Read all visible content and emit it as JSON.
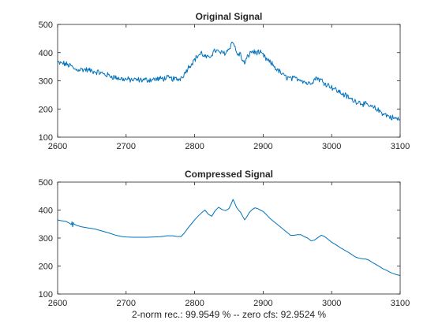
{
  "chart_data": [
    {
      "type": "line",
      "title": "Original Signal",
      "xlabel": "",
      "ylabel": "",
      "xlim": [
        2600,
        3100
      ],
      "ylim": [
        100,
        500
      ],
      "xticks": [
        2600,
        2700,
        2800,
        2900,
        3000,
        3100
      ],
      "yticks": [
        100,
        200,
        300,
        400,
        500
      ],
      "grid": false,
      "color": "#0072BD",
      "noisy": true,
      "series": [
        {
          "x": [
            2600,
            2603,
            2608,
            2613,
            2620,
            2625,
            2630,
            2640,
            2650,
            2660,
            2670,
            2680,
            2690,
            2700,
            2710,
            2720,
            2730,
            2740,
            2750,
            2760,
            2770,
            2778,
            2785,
            2790,
            2795,
            2800,
            2805,
            2810,
            2815,
            2820,
            2825,
            2830,
            2835,
            2840,
            2845,
            2850,
            2853,
            2856,
            2858,
            2861,
            2864,
            2867,
            2870,
            2873,
            2876,
            2880,
            2884,
            2888,
            2892,
            2896,
            2900,
            2905,
            2910,
            2915,
            2920,
            2925,
            2930,
            2935,
            2940,
            2945,
            2950,
            2955,
            2960,
            2965,
            2970,
            2975,
            2978,
            2982,
            2986,
            2990,
            2995,
            3000,
            3005,
            3010,
            3015,
            3020,
            3025,
            3030,
            3035,
            3040,
            3045,
            3050,
            3055,
            3060,
            3065,
            3070,
            3075,
            3080,
            3085,
            3090,
            3095,
            3100
          ],
          "y": [
            365,
            362,
            362,
            358,
            352,
            340,
            340,
            340,
            335,
            330,
            322,
            315,
            308,
            305,
            303,
            303,
            303,
            305,
            307,
            310,
            306,
            306,
            325,
            345,
            360,
            375,
            390,
            398,
            385,
            380,
            395,
            408,
            402,
            398,
            400,
            412,
            430,
            440,
            425,
            400,
            392,
            395,
            370,
            362,
            378,
            396,
            405,
            400,
            402,
            398,
            390,
            375,
            365,
            355,
            340,
            330,
            318,
            312,
            308,
            307,
            308,
            305,
            298,
            290,
            295,
            305,
            312,
            305,
            300,
            292,
            285,
            278,
            270,
            262,
            255,
            248,
            240,
            232,
            228,
            225,
            220,
            215,
            210,
            205,
            200,
            192,
            185,
            178,
            172,
            168,
            165,
            162
          ]
        }
      ]
    },
    {
      "type": "line",
      "title": "Compressed Signal",
      "xlabel": "2-norm rec.: 99.9549 %  -- zero cfs: 92.9524 %",
      "ylabel": "",
      "xlim": [
        2600,
        3100
      ],
      "ylim": [
        100,
        500
      ],
      "xticks": [
        2600,
        2700,
        2800,
        2900,
        3000,
        3100
      ],
      "yticks": [
        100,
        200,
        300,
        400,
        500
      ],
      "grid": false,
      "color": "#0072BD",
      "noisy": false,
      "series": [
        {
          "x": [
            2600,
            2605,
            2612,
            2618,
            2620,
            2621,
            2622,
            2623,
            2624,
            2628,
            2635,
            2645,
            2655,
            2665,
            2675,
            2685,
            2695,
            2700,
            2710,
            2720,
            2730,
            2740,
            2750,
            2760,
            2768,
            2773,
            2780,
            2785,
            2790,
            2795,
            2800,
            2805,
            2810,
            2815,
            2820,
            2825,
            2830,
            2835,
            2840,
            2845,
            2850,
            2853,
            2856,
            2858,
            2861,
            2864,
            2867,
            2870,
            2873,
            2876,
            2880,
            2884,
            2888,
            2892,
            2896,
            2900,
            2905,
            2910,
            2915,
            2920,
            2925,
            2930,
            2935,
            2940,
            2945,
            2950,
            2955,
            2960,
            2965,
            2970,
            2975,
            2980,
            2985,
            2990,
            2995,
            3000,
            3005,
            3010,
            3015,
            3020,
            3025,
            3030,
            3035,
            3040,
            3045,
            3050,
            3055,
            3060,
            3065,
            3070,
            3075,
            3080,
            3085,
            3090,
            3095,
            3100
          ],
          "y": [
            365,
            362,
            360,
            352,
            348,
            358,
            340,
            355,
            350,
            345,
            340,
            336,
            332,
            325,
            318,
            310,
            305,
            304,
            303,
            303,
            303,
            304,
            305,
            308,
            308,
            306,
            305,
            318,
            335,
            350,
            365,
            378,
            390,
            400,
            385,
            378,
            398,
            410,
            402,
            398,
            405,
            420,
            438,
            428,
            410,
            400,
            392,
            378,
            365,
            375,
            392,
            402,
            408,
            405,
            400,
            395,
            383,
            370,
            360,
            350,
            340,
            330,
            320,
            310,
            310,
            312,
            312,
            305,
            300,
            290,
            293,
            302,
            310,
            305,
            295,
            285,
            278,
            270,
            262,
            255,
            248,
            240,
            232,
            228,
            226,
            225,
            220,
            212,
            205,
            198,
            190,
            185,
            178,
            173,
            169,
            166
          ]
        }
      ]
    }
  ]
}
